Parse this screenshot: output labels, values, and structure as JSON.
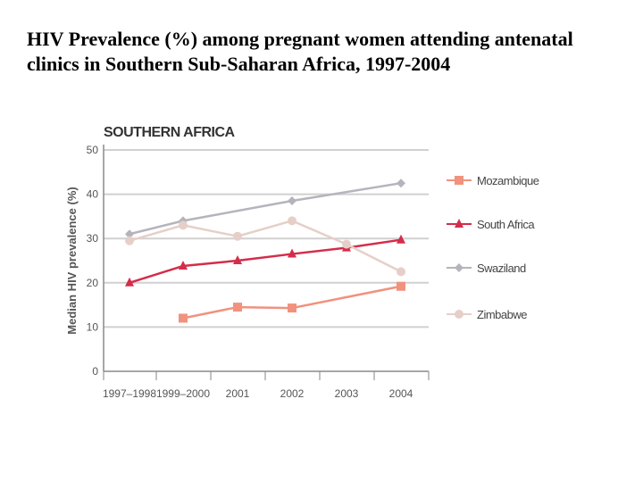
{
  "slide": {
    "title": "HIV Prevalence (%) among pregnant women attending antenatal clinics in Southern Sub-Saharan Africa, 1997-2004"
  },
  "chart_data": {
    "type": "line",
    "title": "SOUTHERN AFRICA",
    "xlabel": "",
    "ylabel": "Median HIV prevalence (%)",
    "categories": [
      "1997–1998",
      "1999–2000",
      "2001",
      "2002",
      "2003",
      "2004"
    ],
    "ylim": [
      0,
      50
    ],
    "yticks": [
      0,
      10,
      20,
      30,
      40,
      50
    ],
    "grid": true,
    "legend_position": "right",
    "series": [
      {
        "name": "Mozambique",
        "values": [
          null,
          12,
          14.5,
          14.3,
          null,
          19.2
        ],
        "color": "#f0927e",
        "marker": "square"
      },
      {
        "name": "South Africa",
        "values": [
          20,
          23.8,
          25,
          26.5,
          27.9,
          29.7
        ],
        "color": "#d42d4a",
        "marker": "triangle"
      },
      {
        "name": "Swaziland",
        "values": [
          31,
          34,
          null,
          38.5,
          null,
          42.5
        ],
        "color": "#b4b4bc",
        "marker": "diamond"
      },
      {
        "name": "Zimbabwe",
        "values": [
          29.5,
          33,
          30.5,
          34,
          28.7,
          22.5
        ],
        "color": "#e6cfc9",
        "marker": "circle"
      }
    ]
  }
}
